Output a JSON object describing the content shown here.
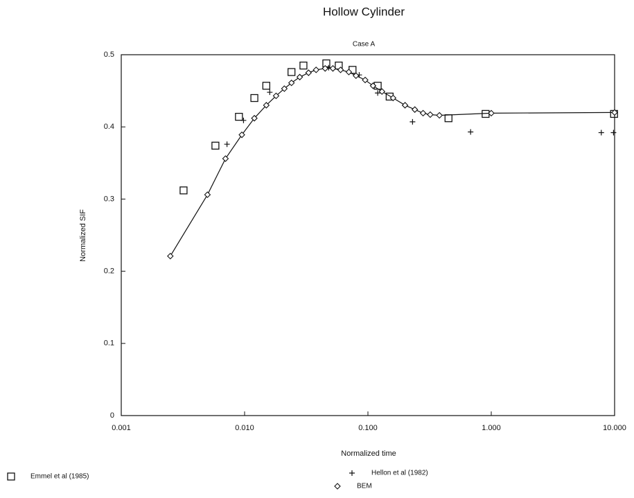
{
  "chart_data": {
    "type": "scatter",
    "title": "Hollow Cylinder",
    "subtitle": "Case A",
    "x_label": "Normalized time",
    "y_label": "Normalized SIF",
    "xscale": "log",
    "xlim": [
      0.001,
      10
    ],
    "ylim": [
      0,
      0.5
    ],
    "xticks": [
      0.001,
      {
        "value": 0.01,
        "label": "0.010"
      },
      {
        "value": 0.1,
        "label": "0.100"
      },
      {
        "value": 1,
        "label": "1.000"
      },
      {
        "value": 10,
        "label": "10.000"
      }
    ],
    "yticks": [
      0,
      0.1,
      0.2,
      0.3,
      0.4,
      0.5
    ],
    "series": [
      {
        "name": "Emmel et al (1985)",
        "marker": "square",
        "color": "#111111",
        "x": [
          0.0032,
          0.0058,
          0.009,
          0.012,
          0.015,
          0.024,
          0.03,
          0.046,
          0.058,
          0.075,
          0.12,
          0.15,
          0.45,
          0.9,
          9.9
        ],
        "values": [
          0.312,
          0.374,
          0.414,
          0.44,
          0.457,
          0.476,
          0.485,
          0.488,
          0.485,
          0.479,
          0.457,
          0.442,
          0.412,
          0.418,
          0.418
        ]
      },
      {
        "name": "Hellon et al (1982)",
        "marker": "plus",
        "color": "#111111",
        "x": [
          0.0072,
          0.0098,
          0.016,
          0.048,
          0.085,
          0.12,
          0.23,
          0.68,
          7.8,
          9.8
        ],
        "values": [
          0.376,
          0.409,
          0.448,
          0.482,
          0.472,
          0.447,
          0.407,
          0.393,
          0.392,
          0.392
        ]
      },
      {
        "name": "BEM",
        "marker": "diamond",
        "line": true,
        "color": "#111111",
        "x": [
          0.0025,
          0.005,
          0.007,
          0.0095,
          0.012,
          0.015,
          0.018,
          0.021,
          0.024,
          0.028,
          0.033,
          0.038,
          0.045,
          0.052,
          0.06,
          0.07,
          0.08,
          0.095,
          0.11,
          0.13,
          0.16,
          0.2,
          0.24,
          0.28,
          0.32,
          0.38,
          1.0,
          10
        ],
        "values": [
          0.221,
          0.306,
          0.356,
          0.389,
          0.412,
          0.43,
          0.443,
          0.453,
          0.461,
          0.469,
          0.475,
          0.479,
          0.481,
          0.481,
          0.479,
          0.476,
          0.471,
          0.465,
          0.457,
          0.449,
          0.44,
          0.43,
          0.424,
          0.419,
          0.417,
          0.416,
          0.419,
          0.42
        ]
      }
    ]
  }
}
